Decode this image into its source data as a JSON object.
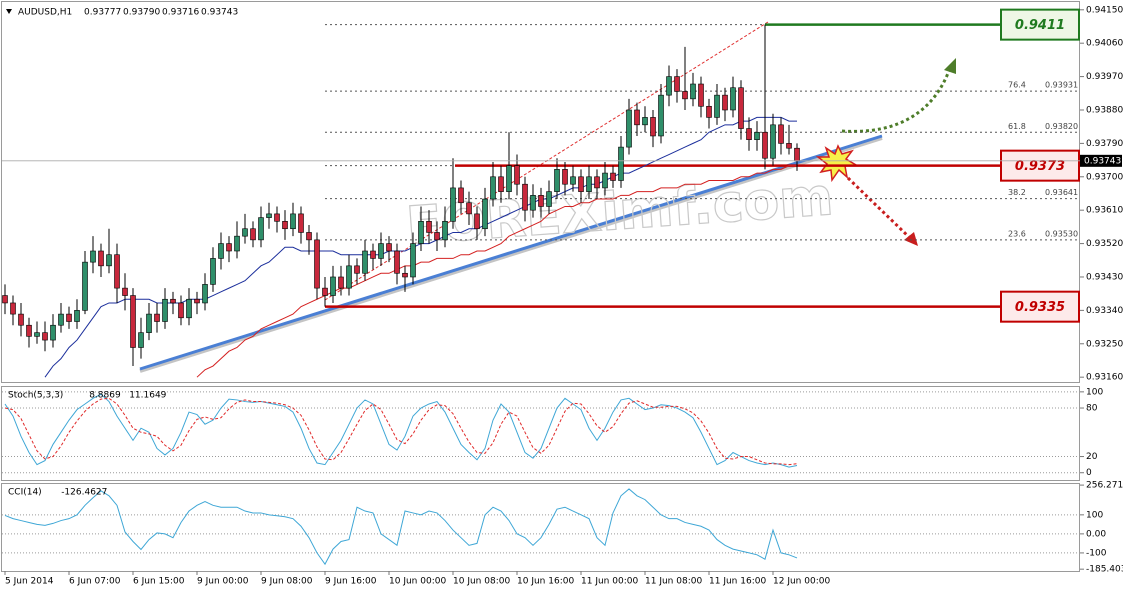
{
  "chart_data": [
    {
      "type": "candlestick",
      "title": "AUDUSD,H1",
      "quote": [
        0.93777,
        {
          "value": 0.9379,
          "label": "0.93790"
        },
        0.93716,
        0.93743
      ],
      "watermark": "FOREXimf.com",
      "categories": [
        "5 Jun 2014",
        null,
        null,
        null,
        null,
        null,
        null,
        null,
        "6 Jun 07:00",
        null,
        null,
        null,
        null,
        null,
        null,
        null,
        "6 Jun 15:00",
        null,
        null,
        null,
        null,
        null,
        null,
        null,
        "9 Jun 00:00",
        null,
        null,
        null,
        null,
        null,
        null,
        null,
        "9 Jun 08:00",
        null,
        null,
        null,
        null,
        null,
        null,
        null,
        "9 Jun 16:00",
        null,
        null,
        null,
        null,
        null,
        null,
        null,
        "10 Jun 00:00",
        null,
        null,
        null,
        null,
        null,
        null,
        null,
        "10 Jun 08:00",
        null,
        null,
        null,
        null,
        null,
        null,
        null,
        "10 Jun 16:00",
        null,
        null,
        null,
        null,
        null,
        null,
        null,
        "11 Jun 00:00",
        null,
        null,
        null,
        null,
        null,
        null,
        null,
        "11 Jun 08:00",
        null,
        null,
        null,
        null,
        null,
        null,
        null,
        "11 Jun 16:00",
        null,
        null,
        null,
        null,
        null,
        null,
        null,
        "12 Jun 00:00",
        null,
        null,
        null
      ],
      "open": [
        0.9338,
        0.9336,
        0.9333,
        0.933,
        0.9327,
        0.9328,
        0.9326,
        0.933,
        0.9333,
        0.9331,
        0.9334,
        0.9347,
        0.935,
        0.9346,
        0.9349,
        0.934,
        0.9338,
        0.9324,
        0.9328,
        0.9333,
        0.9331,
        0.9337,
        0.9336,
        0.9332,
        0.9337,
        0.9336,
        0.9341,
        0.9348,
        0.9352,
        0.935,
        0.9354,
        0.9356,
        0.9353,
        0.9359,
        0.936,
        0.9358,
        0.9356,
        0.936,
        0.9355,
        0.9353,
        0.934,
        0.9338,
        0.9343,
        0.934,
        0.9346,
        0.9344,
        0.935,
        0.9348,
        0.9352,
        0.935,
        0.9344,
        0.9343,
        0.9352,
        0.9358,
        0.9355,
        0.9353,
        0.9358,
        0.9367,
        0.9363,
        0.936,
        0.9356,
        0.9364,
        0.937,
        0.9366,
        0.9373,
        0.9368,
        0.9361,
        0.9365,
        0.9362,
        0.9366,
        0.9372,
        0.9368,
        0.937,
        0.9366,
        0.937,
        0.9367,
        0.9371,
        0.9369,
        0.9378,
        0.9388,
        0.9384,
        0.9386,
        0.9381,
        0.9392,
        0.9397,
        0.9393,
        0.9391,
        0.9395,
        0.9389,
        0.9386,
        0.9392,
        0.9388,
        0.9394,
        0.9383,
        0.938,
        0.9382,
        0.9375,
        0.9384,
        0.9379,
        0.93777
      ],
      "high": [
        0.9341,
        0.9338,
        0.9336,
        0.9332,
        0.9331,
        0.9331,
        0.9333,
        0.9336,
        0.9335,
        0.9337,
        0.935,
        0.9354,
        0.9352,
        0.9356,
        0.9352,
        0.9344,
        0.934,
        0.9332,
        0.9336,
        0.9336,
        0.934,
        0.9339,
        0.9338,
        0.934,
        0.9339,
        0.9344,
        0.9351,
        0.9355,
        0.9354,
        0.9358,
        0.936,
        0.9358,
        0.9362,
        0.9363,
        0.9362,
        0.9361,
        0.9363,
        0.9362,
        0.9357,
        0.9355,
        0.9343,
        0.9346,
        0.9346,
        0.9349,
        0.9348,
        0.9353,
        0.9352,
        0.9355,
        0.9354,
        0.9352,
        0.9346,
        0.9355,
        0.9362,
        0.9361,
        0.9358,
        0.9362,
        0.9375,
        0.9369,
        0.9366,
        0.9362,
        0.9367,
        0.9374,
        0.9373,
        0.9382,
        0.9376,
        0.937,
        0.9368,
        0.9367,
        0.9369,
        0.9375,
        0.9374,
        0.9373,
        0.9372,
        0.9373,
        0.9372,
        0.9374,
        0.9373,
        0.9381,
        0.9391,
        0.939,
        0.9389,
        0.9388,
        0.9395,
        0.94,
        0.9399,
        0.9405,
        0.9398,
        0.9397,
        0.9391,
        0.9395,
        0.9394,
        0.9397,
        0.9396,
        0.9386,
        0.9385,
        0.9411,
        0.9387,
        0.9386,
        0.9384,
        0.9379
      ],
      "low": [
        0.9333,
        0.933,
        0.9327,
        0.9324,
        0.9325,
        0.9323,
        0.9324,
        0.9328,
        0.9329,
        0.9329,
        0.9333,
        0.9344,
        0.9343,
        0.9344,
        0.9336,
        0.9334,
        0.9319,
        0.9321,
        0.9326,
        0.9328,
        0.9329,
        0.9333,
        0.933,
        0.933,
        0.9333,
        0.9334,
        0.9339,
        0.9345,
        0.9347,
        0.9348,
        0.9352,
        0.9351,
        0.9351,
        0.9356,
        0.9355,
        0.9353,
        0.9354,
        0.9352,
        0.9349,
        0.9337,
        0.9335,
        0.9336,
        0.9338,
        0.9338,
        0.9341,
        0.9342,
        0.9345,
        0.9346,
        0.9347,
        0.9341,
        0.9339,
        0.9341,
        0.935,
        0.9352,
        0.935,
        0.9351,
        0.9356,
        0.936,
        0.9357,
        0.9353,
        0.9354,
        0.9362,
        0.9363,
        0.9364,
        0.9365,
        0.9358,
        0.9359,
        0.9359,
        0.936,
        0.9364,
        0.9365,
        0.9366,
        0.9363,
        0.9364,
        0.9364,
        0.9365,
        0.9367,
        0.9367,
        0.9376,
        0.9381,
        0.9382,
        0.9378,
        0.9379,
        0.9389,
        0.939,
        0.9388,
        0.9389,
        0.9386,
        0.9383,
        0.9384,
        0.9385,
        0.9386,
        0.938,
        0.9377,
        0.9377,
        0.9372,
        0.9373,
        0.9376,
        0.9376,
        0.93716
      ],
      "close": [
        0.9336,
        0.9333,
        0.933,
        0.9327,
        0.9328,
        0.9326,
        0.933,
        0.9333,
        0.9331,
        0.9334,
        0.9347,
        0.935,
        0.9346,
        0.9349,
        0.934,
        0.9338,
        0.9324,
        0.9328,
        0.9333,
        0.9331,
        0.9337,
        0.9336,
        0.9332,
        0.9337,
        0.9336,
        0.9341,
        0.9348,
        0.9352,
        0.935,
        0.9354,
        0.9356,
        0.9353,
        0.9359,
        0.936,
        0.9358,
        0.9356,
        0.936,
        0.9355,
        0.9353,
        0.934,
        0.9338,
        0.9343,
        0.934,
        0.9346,
        0.9344,
        0.935,
        0.9348,
        0.9352,
        0.935,
        0.9344,
        0.9343,
        0.9352,
        0.9358,
        0.9355,
        0.9353,
        0.9358,
        0.9367,
        0.9363,
        0.936,
        0.9356,
        0.9364,
        0.937,
        0.9366,
        0.9373,
        0.9368,
        0.9361,
        0.9365,
        0.9362,
        0.9366,
        0.9372,
        0.9368,
        0.937,
        0.9366,
        0.937,
        0.9367,
        0.9371,
        0.9369,
        0.9378,
        0.9388,
        0.9384,
        0.9386,
        0.9381,
        0.9392,
        0.9397,
        0.9393,
        0.9391,
        0.9395,
        0.9389,
        0.9386,
        0.9392,
        0.9388,
        0.9394,
        0.9383,
        0.938,
        0.9382,
        0.9375,
        0.9384,
        0.9379,
        0.93777,
        0.93743
      ],
      "up_color": "#2f8f6a",
      "down_color": "#c8283c",
      "series": [
        {
          "color": "#1c2f9c",
          "values": [
            null,
            null,
            null,
            null,
            null,
            0.9316,
            0.9319,
            0.9321,
            0.9324,
            0.9326,
            0.9329,
            0.9332,
            0.9335,
            0.9336,
            0.9336,
            0.9337,
            0.9337,
            0.9337,
            0.9337,
            0.9336,
            0.9336,
            0.9336,
            0.9336,
            0.9337,
            0.9337,
            0.9337,
            0.9338,
            0.9339,
            0.934,
            0.9341,
            0.9342,
            0.9344,
            0.9346,
            0.9347,
            0.9349,
            0.9351,
            0.9351,
            0.935,
            0.935,
            0.935,
            0.935,
            0.935,
            0.9349,
            0.9349,
            0.9349,
            0.9349,
            0.9349,
            0.9349,
            0.935,
            0.935,
            0.935,
            0.9351,
            0.9352,
            0.9352,
            0.9353,
            0.9354,
            0.9355,
            0.9355,
            0.9356,
            0.9356,
            0.9357,
            0.9358,
            0.9359,
            0.936,
            0.9361,
            0.9362,
            0.9363,
            0.9364,
            0.9364,
            0.9365,
            0.9366,
            0.9367,
            0.9367,
            0.9368,
            0.9368,
            0.9369,
            0.937,
            0.9371,
            0.9371,
            0.9372,
            0.9373,
            0.9374,
            0.9375,
            0.9376,
            0.9377,
            0.9378,
            0.9379,
            0.938,
            0.9382,
            0.9383,
            0.9384,
            0.9384,
            0.9385,
            0.9385,
            0.9386,
            0.9386,
            0.9386,
            0.9386,
            0.9385,
            0.9385
          ]
        },
        {
          "color": "#d42020",
          "values": [
            null,
            null,
            null,
            null,
            null,
            null,
            null,
            null,
            null,
            null,
            null,
            null,
            null,
            null,
            null,
            null,
            null,
            null,
            null,
            null,
            null,
            null,
            null,
            null,
            0.9316,
            0.9318,
            0.9319,
            0.9321,
            0.9323,
            0.9324,
            0.9326,
            0.9327,
            0.9329,
            0.933,
            0.9331,
            0.9332,
            0.9333,
            0.9335,
            0.9336,
            0.9337,
            0.9338,
            0.9339,
            0.934,
            0.934,
            0.9341,
            0.9342,
            0.9343,
            0.9344,
            0.9344,
            0.9345,
            0.9346,
            0.9346,
            0.9347,
            0.9347,
            0.9348,
            0.9348,
            0.9348,
            0.9349,
            0.9349,
            0.935,
            0.935,
            0.9351,
            0.9352,
            0.9354,
            0.9355,
            0.9356,
            0.9357,
            0.9358,
            0.936,
            0.9361,
            0.9362,
            0.9362,
            0.9363,
            0.9363,
            0.9364,
            0.9364,
            0.9364,
            0.9365,
            0.9365,
            0.9366,
            0.9366,
            0.9366,
            0.9367,
            0.9367,
            0.9367,
            0.9368,
            0.9368,
            0.9368,
            0.9369,
            0.9369,
            0.9369,
            0.9369,
            0.937,
            0.937,
            0.9371,
            0.9371,
            0.9372,
            0.9372,
            0.9373,
            0.9373
          ]
        }
      ],
      "fib": [
        {
          "ratio": 76.4,
          "price": 0.93931
        },
        {
          "ratio": 61.8,
          "price": {
            "value": 0.9382,
            "label": "0.93820"
          }
        },
        {
          "ratio": 38.2,
          "price": 0.93641
        },
        {
          "ratio": 23.6,
          "price": {
            "value": 0.9353,
            "label": "0.93530"
          }
        }
      ],
      "levels": [
        {
          "value": 0.9411,
          "color": "#1f7a1f"
        },
        {
          "value": 0.9373,
          "color": "#c00000"
        },
        {
          "value": 0.9335,
          "color": "#c00000"
        }
      ],
      "ylim": [
        0.93147,
        0.94171
      ],
      "yticks": [
        {
          "value": 0.9415,
          "label": "0.94150"
        },
        {
          "value": 0.9406,
          "label": "0.94060"
        },
        {
          "value": 0.9397,
          "label": "0.93970"
        },
        {
          "value": 0.9388,
          "label": "0.93880"
        },
        {
          "value": 0.9379,
          "label": "0.93790"
        },
        {
          "value": 0.937,
          "label": "0.93700"
        },
        {
          "value": 0.9361,
          "label": "0.93610"
        },
        {
          "value": 0.9352,
          "label": "0.93520"
        },
        {
          "value": 0.9343,
          "label": "0.93430"
        },
        {
          "value": 0.9334,
          "label": "0.93340"
        },
        {
          "value": 0.9325,
          "label": "0.93250"
        },
        {
          "value": 0.9316,
          "label": "0.93160"
        }
      ],
      "grid": false
    },
    {
      "type": "line",
      "title": "Stoch(5,3,3)",
      "series": [
        {
          "color": "#3fa7d6",
          "values": [
            85,
            70,
            45,
            25,
            10,
            15,
            35,
            50,
            65,
            78,
            85,
            92,
            97,
            88,
            70,
            55,
            40,
            55,
            50,
            30,
            22,
            30,
            50,
            75,
            72,
            60,
            65,
            80,
            91,
            90,
            88,
            87,
            88,
            86,
            84,
            82,
            75,
            55,
            30,
            12,
            10,
            25,
            40,
            60,
            80,
            90,
            85,
            60,
            35,
            28,
            45,
            70,
            80,
            85,
            88,
            75,
            55,
            35,
            25,
            16,
            30,
            65,
            85,
            75,
            50,
            25,
            18,
            30,
            55,
            80,
            92,
            85,
            78,
            55,
            40,
            55,
            75,
            90,
            92,
            85,
            78,
            80,
            84,
            83,
            80,
            75,
            68,
            50,
            30,
            10,
            15,
            25,
            20,
            15,
            12,
            10,
            12,
            10,
            7,
            8.8869
          ]
        },
        {
          "color": "#e02a2a",
          "dash": true,
          "values": [
            80,
            78,
            67,
            47,
            27,
            17,
            20,
            33,
            50,
            64,
            76,
            85,
            91,
            92,
            85,
            71,
            55,
            50,
            48,
            45,
            34,
            27,
            34,
            52,
            66,
            69,
            66,
            68,
            79,
            87,
            90,
            88,
            88,
            87,
            86,
            84,
            80,
            71,
            53,
            32,
            17,
            16,
            25,
            42,
            60,
            77,
            85,
            78,
            60,
            41,
            36,
            48,
            65,
            78,
            84,
            83,
            73,
            55,
            38,
            25,
            24,
            37,
            60,
            75,
            70,
            50,
            31,
            24,
            34,
            55,
            76,
            86,
            85,
            73,
            58,
            50,
            57,
            73,
            86,
            89,
            85,
            81,
            81,
            82,
            82,
            79,
            74,
            64,
            49,
            30,
            18,
            17,
            20,
            20,
            16,
            12,
            11,
            11,
            10,
            11.1649
          ]
        }
      ],
      "ylim": [
        -9,
        106
      ],
      "yticks": [
        100,
        80,
        20,
        0
      ],
      "grid": true
    },
    {
      "type": "line",
      "title": "CCI(14)",
      "series": [
        {
          "color": "#3fa7d6",
          "values": [
            97,
            80,
            70,
            60,
            50,
            45,
            55,
            70,
            80,
            100,
            150,
            190,
            226,
            200,
            150,
            10,
            -40,
            -82,
            -30,
            5,
            0,
            -20,
            60,
            120,
            150,
            170,
            150,
            140,
            140,
            140,
            120,
            110,
            110,
            100,
            95,
            90,
            80,
            40,
            -20,
            -100,
            -159,
            -80,
            -40,
            -30,
            140,
            120,
            110,
            0,
            -30,
            -60,
            120,
            110,
            100,
            120,
            110,
            70,
            20,
            -20,
            -60,
            -50,
            100,
            140,
            120,
            70,
            0,
            -20,
            -60,
            -20,
            50,
            130,
            140,
            120,
            100,
            80,
            -20,
            -60,
            110,
            200,
            236,
            200,
            180,
            140,
            100,
            80,
            80,
            60,
            50,
            40,
            20,
            -30,
            -60,
            -80,
            -90,
            -100,
            -110,
            -133,
            20,
            -100,
            -110,
            -126.4627
          ]
        }
      ],
      "ylim": [
        -195,
        262
      ],
      "yticks": [
        256.2715,
        100,
        {
          "value": 0,
          "label": "0.00"
        },
        -100,
        -185.4039
      ],
      "grid": true
    }
  ]
}
